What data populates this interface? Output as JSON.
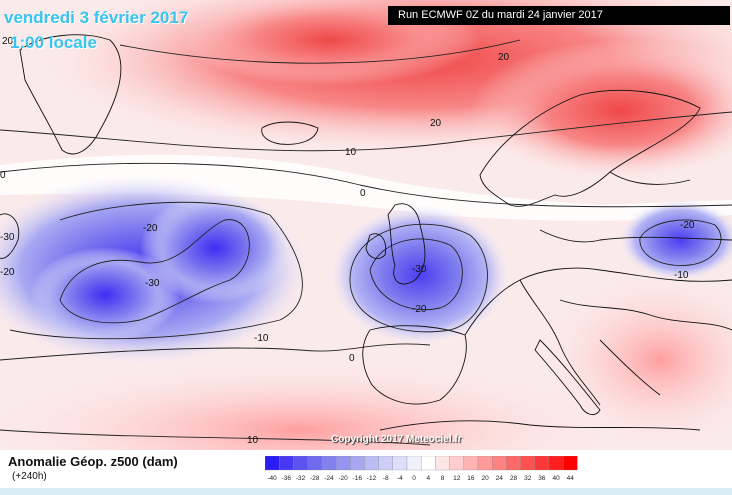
{
  "header": {
    "date_line": "vendredi 3 février 2017",
    "time_line": "1:00 locale",
    "run_info": "Run ECMWF 0Z du mardi 24 janvier 2017"
  },
  "contour_labels": [
    "20",
    "20",
    "20",
    "10",
    "0",
    "0",
    "-20",
    "-30",
    "-30",
    "-20",
    "-10",
    "-20",
    "-30",
    "-20",
    "-10",
    "10",
    "0"
  ],
  "copyright": "Copyright 2017 Meteociel.fr",
  "legend": {
    "title": "Anomalie Géop. z500 (dam)",
    "subtitle": "(+240h)",
    "ticks": [
      "-40",
      "-36",
      "-32",
      "-28",
      "-24",
      "-20",
      "-16",
      "-12",
      "-8",
      "-4",
      "0",
      "4",
      "8",
      "12",
      "16",
      "20",
      "24",
      "28",
      "32",
      "36",
      "40",
      "44"
    ],
    "colors": [
      "#2b1bf5",
      "#4638f3",
      "#5b52ef",
      "#6f6aee",
      "#8281ee",
      "#9595ef",
      "#a8a8f2",
      "#bbbbf5",
      "#cdcdf8",
      "#dedefa",
      "#f0f0fc",
      "#ffffff",
      "#ffe6e6",
      "#ffcdcd",
      "#ffb4b4",
      "#ff9b9b",
      "#ff8282",
      "#ff6969",
      "#ff5050",
      "#ff3737",
      "#ff1e1e",
      "#ff0000"
    ]
  }
}
